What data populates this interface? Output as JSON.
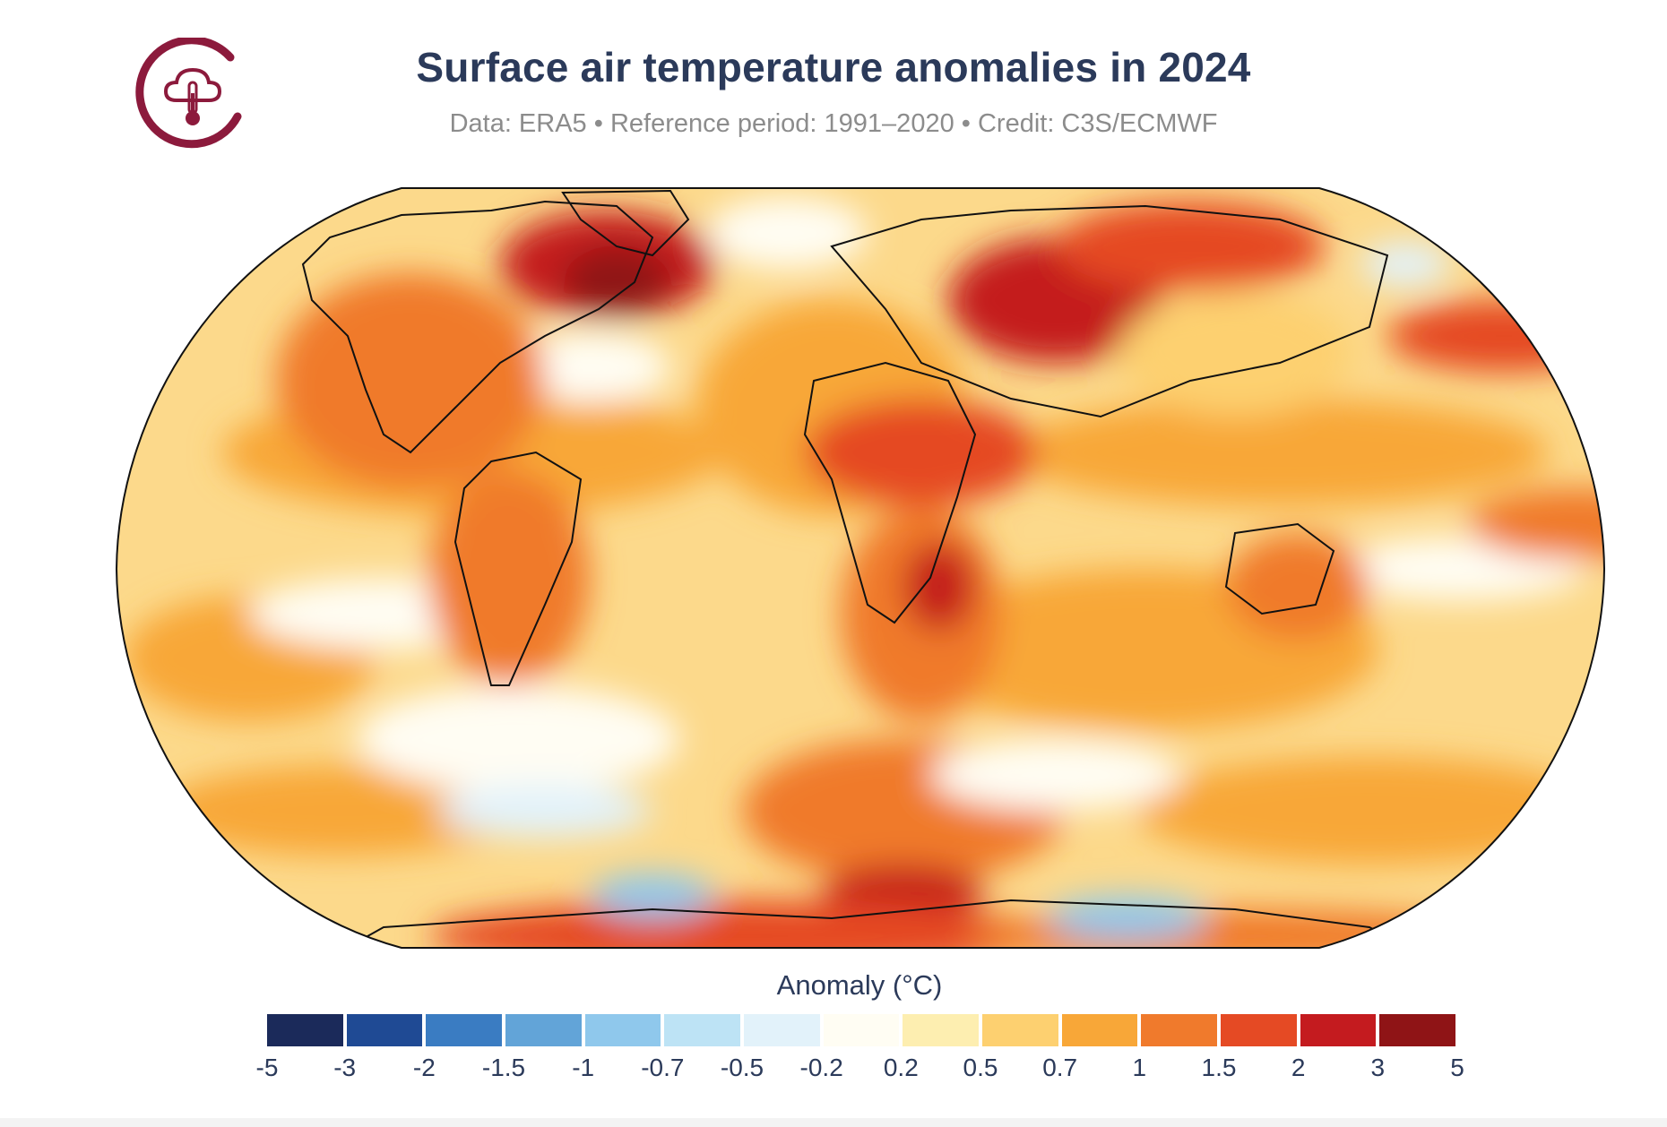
{
  "header": {
    "title": "Surface air temperature anomalies in 2024",
    "subtitle": "Data: ERA5 • Reference period: 1991–2020 • Credit: C3S/ECMWF",
    "logo_icon": "c3s-cloud-thermometer-icon"
  },
  "map": {
    "projection": "Robinson",
    "background": "#fcd98b"
  },
  "legend": {
    "title": "Anomaly (°C)",
    "bins": [
      {
        "color": "#1b2a5a"
      },
      {
        "color": "#1f4a94"
      },
      {
        "color": "#3a7cc2"
      },
      {
        "color": "#62a4d8"
      },
      {
        "color": "#8fc8ec"
      },
      {
        "color": "#bde3f5"
      },
      {
        "color": "#e2f2fa"
      },
      {
        "color": "#fffdf3"
      },
      {
        "color": "#fdeeb0"
      },
      {
        "color": "#fdd070"
      },
      {
        "color": "#f8a738"
      },
      {
        "color": "#f07a2c"
      },
      {
        "color": "#e54a24"
      },
      {
        "color": "#c41b1f"
      },
      {
        "color": "#8f1416"
      }
    ],
    "ticks": [
      "-5",
      "-3",
      "-2",
      "-1.5",
      "-1",
      "-0.7",
      "-0.5",
      "-0.2",
      "0.2",
      "0.5",
      "0.7",
      "1",
      "1.5",
      "2",
      "3",
      "5"
    ]
  }
}
